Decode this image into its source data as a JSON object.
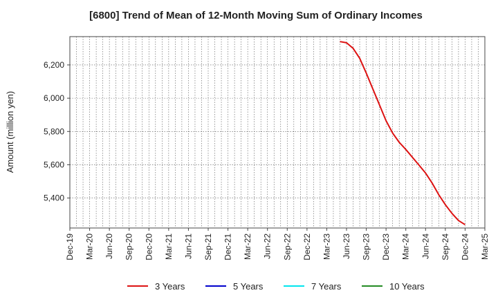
{
  "chart_data": {
    "type": "line",
    "title": "[6800]  Trend of Mean of 12-Month Moving Sum of Ordinary Incomes",
    "xlabel": "",
    "ylabel": "Amount (million yen)",
    "ylim": [
      5220,
      6370
    ],
    "yticks": [
      5400,
      5600,
      5800,
      6000,
      6200
    ],
    "ytick_labels": [
      "5,400",
      "5,600",
      "5,800",
      "6,000",
      "6,200"
    ],
    "x_start": "2019-12",
    "x_end": "2025-03",
    "xtick_labels": [
      "Dec-19",
      "Mar-20",
      "Jun-20",
      "Sep-20",
      "Dec-20",
      "Mar-21",
      "Jun-21",
      "Sep-21",
      "Dec-21",
      "Mar-22",
      "Jun-22",
      "Sep-22",
      "Dec-22",
      "Mar-23",
      "Jun-23",
      "Sep-23",
      "Dec-23",
      "Mar-24",
      "Jun-24",
      "Sep-24",
      "Dec-24",
      "Mar-25"
    ],
    "grid": true,
    "legend_position": "bottom",
    "series": [
      {
        "name": "3 Years",
        "color": "#dd1111",
        "x": [
          "2023-05",
          "2023-06",
          "2023-07",
          "2023-08",
          "2023-09",
          "2023-10",
          "2023-11",
          "2023-12",
          "2024-01",
          "2024-02",
          "2024-03",
          "2024-04",
          "2024-05",
          "2024-06",
          "2024-07",
          "2024-08",
          "2024-09",
          "2024-10",
          "2024-11",
          "2024-12"
        ],
        "values": [
          6340,
          6333,
          6300,
          6240,
          6150,
          6055,
          5960,
          5865,
          5790,
          5735,
          5692,
          5645,
          5598,
          5550,
          5490,
          5420,
          5360,
          5308,
          5265,
          5240
        ]
      },
      {
        "name": "5 Years",
        "color": "#0000cc",
        "x": [],
        "values": []
      },
      {
        "name": "7 Years",
        "color": "#00e5ee",
        "x": [],
        "values": []
      },
      {
        "name": "10 Years",
        "color": "#228b22",
        "x": [],
        "values": []
      }
    ]
  }
}
